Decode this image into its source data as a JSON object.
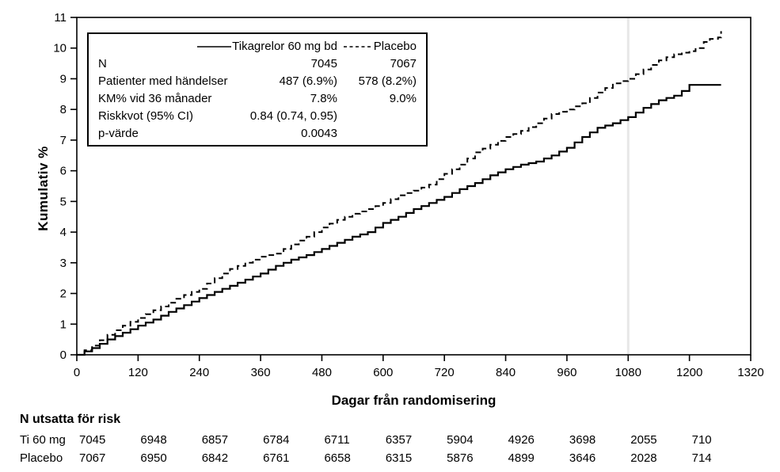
{
  "chart_data": {
    "type": "line",
    "subtype": "kaplan-meier-cumulative-incidence-step-curves",
    "title": "",
    "xlabel": "Dagar från randomisering",
    "ylabel": "Kumulativ %",
    "xlim": [
      0,
      1320
    ],
    "ylim": [
      0,
      11
    ],
    "x_ticks": [
      0,
      120,
      240,
      360,
      480,
      600,
      720,
      840,
      960,
      1080,
      1200,
      1320
    ],
    "y_ticks": [
      0,
      1,
      2,
      3,
      4,
      5,
      6,
      7,
      8,
      9,
      10,
      11
    ],
    "grid": false,
    "reference_line_x": 1080,
    "legend_position": "top-left-inside",
    "series": [
      {
        "name": "Tikagrelor 60 mg bd",
        "style": "solid",
        "points": [
          [
            0,
            0
          ],
          [
            30,
            0.22
          ],
          [
            60,
            0.5
          ],
          [
            90,
            0.72
          ],
          [
            120,
            0.95
          ],
          [
            150,
            1.15
          ],
          [
            180,
            1.4
          ],
          [
            210,
            1.62
          ],
          [
            240,
            1.85
          ],
          [
            270,
            2.05
          ],
          [
            300,
            2.25
          ],
          [
            330,
            2.45
          ],
          [
            360,
            2.65
          ],
          [
            390,
            2.9
          ],
          [
            420,
            3.1
          ],
          [
            450,
            3.25
          ],
          [
            480,
            3.45
          ],
          [
            510,
            3.65
          ],
          [
            540,
            3.85
          ],
          [
            570,
            4.0
          ],
          [
            600,
            4.3
          ],
          [
            630,
            4.5
          ],
          [
            660,
            4.75
          ],
          [
            690,
            4.95
          ],
          [
            720,
            5.15
          ],
          [
            750,
            5.4
          ],
          [
            780,
            5.6
          ],
          [
            810,
            5.85
          ],
          [
            840,
            6.05
          ],
          [
            870,
            6.2
          ],
          [
            900,
            6.3
          ],
          [
            930,
            6.5
          ],
          [
            960,
            6.75
          ],
          [
            990,
            7.1
          ],
          [
            1020,
            7.4
          ],
          [
            1050,
            7.55
          ],
          [
            1080,
            7.75
          ],
          [
            1110,
            8.05
          ],
          [
            1140,
            8.3
          ],
          [
            1170,
            8.45
          ],
          [
            1185,
            8.6
          ],
          [
            1200,
            8.8
          ],
          [
            1262,
            8.8
          ]
        ]
      },
      {
        "name": "Placebo",
        "style": "dashed",
        "points": [
          [
            0,
            0
          ],
          [
            30,
            0.3
          ],
          [
            60,
            0.65
          ],
          [
            90,
            0.95
          ],
          [
            120,
            1.2
          ],
          [
            150,
            1.45
          ],
          [
            180,
            1.7
          ],
          [
            210,
            1.95
          ],
          [
            240,
            2.15
          ],
          [
            270,
            2.5
          ],
          [
            300,
            2.8
          ],
          [
            330,
            3.0
          ],
          [
            360,
            3.2
          ],
          [
            390,
            3.3
          ],
          [
            420,
            3.6
          ],
          [
            450,
            3.85
          ],
          [
            480,
            4.15
          ],
          [
            510,
            4.4
          ],
          [
            540,
            4.6
          ],
          [
            570,
            4.75
          ],
          [
            600,
            4.95
          ],
          [
            630,
            5.2
          ],
          [
            660,
            5.35
          ],
          [
            690,
            5.55
          ],
          [
            720,
            5.9
          ],
          [
            750,
            6.2
          ],
          [
            780,
            6.6
          ],
          [
            810,
            6.85
          ],
          [
            840,
            7.1
          ],
          [
            870,
            7.3
          ],
          [
            900,
            7.55
          ],
          [
            930,
            7.85
          ],
          [
            960,
            8.0
          ],
          [
            990,
            8.2
          ],
          [
            1020,
            8.55
          ],
          [
            1050,
            8.85
          ],
          [
            1080,
            9.0
          ],
          [
            1110,
            9.3
          ],
          [
            1140,
            9.6
          ],
          [
            1170,
            9.8
          ],
          [
            1200,
            9.9
          ],
          [
            1212,
            10.0
          ],
          [
            1228,
            10.2
          ],
          [
            1240,
            10.3
          ],
          [
            1256,
            10.35
          ],
          [
            1262,
            10.55
          ]
        ]
      }
    ]
  },
  "legend_box": {
    "rows": [
      {
        "label": "N",
        "v1": "7045",
        "v2": "7067"
      },
      {
        "label": "Patienter med händelser",
        "v1": "487 (6.9%)",
        "v2": "578 (8.2%)"
      },
      {
        "label": "KM% vid 36 månader",
        "v1": "7.8%",
        "v2": "9.0%"
      },
      {
        "label": "Riskkvot (95% CI)",
        "v1": "0.84 (0.74, 0.95)",
        "v2": ""
      },
      {
        "label": "p-värde",
        "v1": "0.0043",
        "v2": ""
      }
    ]
  },
  "risk_table": {
    "title": "N utsatta för risk",
    "value_days": [
      0,
      120,
      240,
      360,
      480,
      600,
      720,
      840,
      960,
      1080,
      1200
    ],
    "rows": [
      {
        "label": "Ti 60 mg",
        "values": [
          "7045",
          "6948",
          "6857",
          "6784",
          "6711",
          "6357",
          "5904",
          "4926",
          "3698",
          "2055",
          "710"
        ]
      },
      {
        "label": "Placebo",
        "values": [
          "7067",
          "6950",
          "6842",
          "6761",
          "6658",
          "6315",
          "5876",
          "4899",
          "3646",
          "2028",
          "714"
        ]
      }
    ]
  },
  "colors": {
    "curve": "#000000",
    "axis": "#000000",
    "reference_line": "#e7e7e7",
    "background": "#ffffff"
  }
}
